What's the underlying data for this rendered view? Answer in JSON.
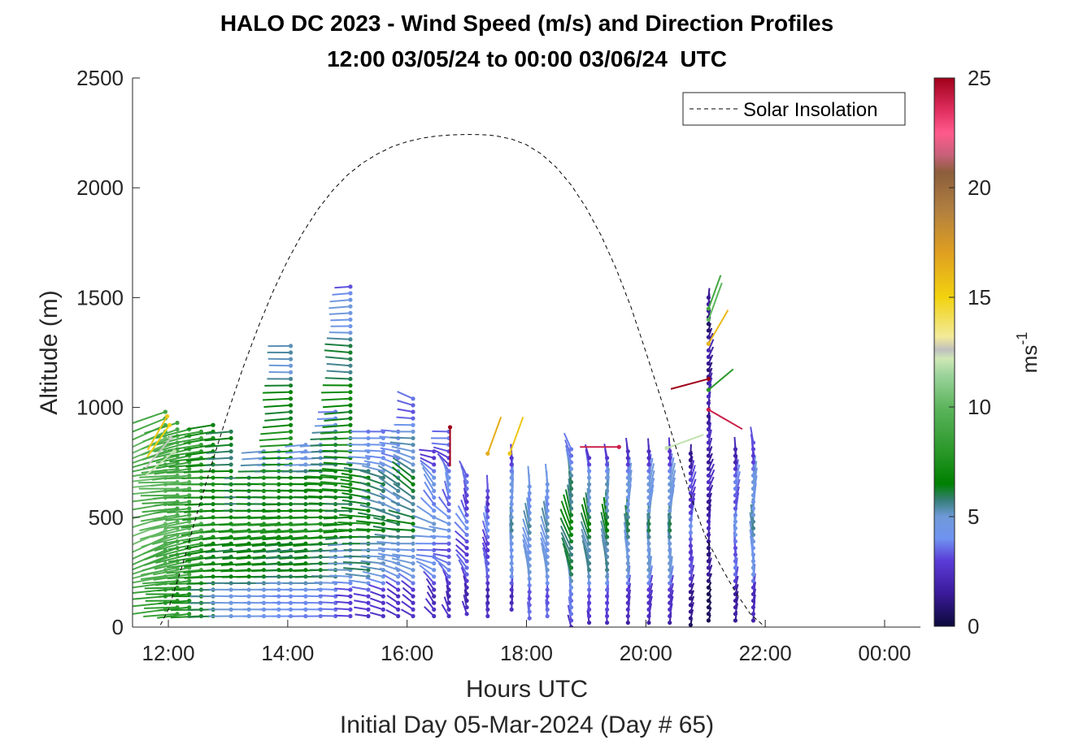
{
  "chart_data": {
    "type": "scatter",
    "title": "HALO DC 2023 - Wind Speed (m/s) and Direction Profiles",
    "subtitle": "12:00 03/05/24 to 00:00 03/06/24  UTC",
    "xlabel": "Hours UTC",
    "xlabel2": "Initial Day 05-Mar-2024 (Day # 65)",
    "ylabel": "Altitude (m)",
    "xlim": [
      11.4,
      24.6
    ],
    "ylim": [
      0,
      2500
    ],
    "x_ticks": [
      {
        "value": 12,
        "label": "12:00"
      },
      {
        "value": 14,
        "label": "14:00"
      },
      {
        "value": 16,
        "label": "16:00"
      },
      {
        "value": 18,
        "label": "18:00"
      },
      {
        "value": 20,
        "label": "20:00"
      },
      {
        "value": 22,
        "label": "22:00"
      },
      {
        "value": 24,
        "label": "00:00"
      }
    ],
    "y_ticks": [
      {
        "value": 0,
        "label": "0"
      },
      {
        "value": 500,
        "label": "500"
      },
      {
        "value": 1000,
        "label": "1000"
      },
      {
        "value": 1500,
        "label": "1500"
      },
      {
        "value": 2000,
        "label": "2000"
      },
      {
        "value": 2500,
        "label": "2500"
      }
    ],
    "colorbar": {
      "label_base": "ms",
      "label_exp": "-1",
      "range": [
        0,
        25
      ],
      "ticks": [
        {
          "value": 0,
          "label": "0"
        },
        {
          "value": 5,
          "label": "5"
        },
        {
          "value": 10,
          "label": "10"
        },
        {
          "value": 15,
          "label": "15"
        },
        {
          "value": 20,
          "label": "20"
        },
        {
          "value": 25,
          "label": "25"
        }
      ],
      "stops": [
        {
          "v": 0,
          "c": "#0c0a3a"
        },
        {
          "v": 1.5,
          "c": "#3a1a9a"
        },
        {
          "v": 3,
          "c": "#5a3cd8"
        },
        {
          "v": 4,
          "c": "#6f93f0"
        },
        {
          "v": 5,
          "c": "#6f9ad8"
        },
        {
          "v": 5.7,
          "c": "#3a7f7f"
        },
        {
          "v": 6.5,
          "c": "#008000"
        },
        {
          "v": 8,
          "c": "#2a982a"
        },
        {
          "v": 10,
          "c": "#5db55d"
        },
        {
          "v": 11.5,
          "c": "#9ed49e"
        },
        {
          "v": 12.2,
          "c": "#cfe8b5"
        },
        {
          "v": 12.6,
          "c": "#bfbfbf"
        },
        {
          "v": 13.2,
          "c": "#f2ea9a"
        },
        {
          "v": 15,
          "c": "#f2d20f"
        },
        {
          "v": 17,
          "c": "#e0a020"
        },
        {
          "v": 19,
          "c": "#b07f40"
        },
        {
          "v": 20.7,
          "c": "#8c5e3c"
        },
        {
          "v": 21.5,
          "c": "#c8607a"
        },
        {
          "v": 22.5,
          "c": "#ff5a8c"
        },
        {
          "v": 23.5,
          "c": "#e03060"
        },
        {
          "v": 25,
          "c": "#a0001a"
        }
      ]
    },
    "legend": {
      "position": "top-right",
      "entries": [
        {
          "name": "Solar Insolation",
          "style": "dashed",
          "color": "#000000"
        }
      ]
    },
    "solar_insolation": {
      "x": [
        11.4,
        11.85,
        12.0,
        12.25,
        12.5,
        12.75,
        13.0,
        13.25,
        13.5,
        13.75,
        14.0,
        14.25,
        14.5,
        14.75,
        15.0,
        15.25,
        15.5,
        15.75,
        16.0,
        16.25,
        16.5,
        16.75,
        17.0,
        17.25,
        17.38,
        17.5,
        17.75,
        18.0,
        18.25,
        18.5,
        18.75,
        19.0,
        19.25,
        19.5,
        19.75,
        20.0,
        20.25,
        20.5,
        20.75,
        21.0,
        21.25,
        21.5,
        21.75,
        22.0,
        22.25,
        22.5,
        22.7,
        22.78,
        23.0,
        24.0,
        24.6
      ],
      "y": [
        0,
        0,
        80,
        295,
        535,
        764,
        980,
        1180,
        1362,
        1526,
        1670,
        1794,
        1900,
        1987,
        2058,
        2112,
        2154,
        2187,
        2210,
        2226,
        2236,
        2241,
        2243,
        2242,
        2240,
        2236,
        2222,
        2196,
        2154,
        2093,
        2012,
        1909,
        1783,
        1633,
        1457,
        1253,
        1042,
        822,
        597,
        410,
        280,
        160,
        60,
        0,
        0,
        0,
        0,
        0,
        0,
        0,
        0
      ]
    },
    "wind_profiles": [
      {
        "time": 11.95,
        "alt_min": 80,
        "alt_max": 1000,
        "speed_base": 9.5,
        "speed_gain": 0.5,
        "dir_base": 75,
        "dir_gain": 10
      },
      {
        "time": 12.15,
        "alt_min": 60,
        "alt_max": 930,
        "speed_base": 9.0,
        "speed_gain": 0.5,
        "dir_base": 80,
        "dir_gain": 10
      },
      {
        "time": 12.35,
        "alt_min": 60,
        "alt_max": 900,
        "speed_base": 8.5,
        "speed_gain": 1.0,
        "dir_base": 80,
        "dir_gain": 5
      },
      {
        "time": 12.55,
        "alt_min": 50,
        "alt_max": 900,
        "speed_base": 8.0,
        "speed_gain": 1.0,
        "dir_base": 85,
        "dir_gain": 5
      },
      {
        "time": 12.75,
        "alt_min": 50,
        "alt_max": 920,
        "speed_base": 6.5,
        "speed_gain": 1.0,
        "dir_base": 85,
        "dir_gain": 5
      },
      {
        "time": 13.05,
        "alt_min": 50,
        "alt_max": 900,
        "speed_base": 5.5,
        "speed_gain": 1.5,
        "dir_base": 88,
        "dir_gain": 3
      },
      {
        "time": 13.35,
        "alt_min": 50,
        "alt_max": 700,
        "speed_base": 5.0,
        "speed_gain": 2.0,
        "dir_base": 88,
        "dir_gain": 3
      },
      {
        "time": 13.6,
        "alt_min": 50,
        "alt_max": 820,
        "speed_base": 5.0,
        "speed_gain": 2.5,
        "dir_base": 88,
        "dir_gain": 3
      },
      {
        "time": 13.85,
        "alt_min": 50,
        "alt_max": 820,
        "speed_base": 4.5,
        "speed_gain": 2.5,
        "dir_base": 88,
        "dir_gain": 3
      },
      {
        "time": 14.05,
        "alt_min": 50,
        "alt_max": 1290,
        "speed_base": 4.5,
        "speed_gain": 3.0,
        "dir_base": 88,
        "dir_gain": 3
      },
      {
        "time": 14.3,
        "alt_min": 50,
        "alt_max": 830,
        "speed_base": 4.2,
        "speed_gain": 3.0,
        "dir_base": 88,
        "dir_gain": 3
      },
      {
        "time": 14.55,
        "alt_min": 50,
        "alt_max": 830,
        "speed_base": 4.2,
        "speed_gain": 3.0,
        "dir_base": 88,
        "dir_gain": 3
      },
      {
        "time": 14.8,
        "alt_min": 50,
        "alt_max": 990,
        "speed_base": 4.0,
        "speed_gain": 3.0,
        "dir_base": 90,
        "dir_gain": 3
      },
      {
        "time": 15.05,
        "alt_min": 50,
        "alt_max": 1560,
        "speed_base": 3.5,
        "speed_gain": 3.5,
        "dir_base": 90,
        "dir_gain": 5
      },
      {
        "time": 15.35,
        "alt_min": 50,
        "alt_max": 910,
        "speed_base": 3.0,
        "speed_gain": 4.0,
        "dir_base": 95,
        "dir_gain": 5
      },
      {
        "time": 15.6,
        "alt_min": 50,
        "alt_max": 900,
        "speed_base": 3.0,
        "speed_gain": 3.0,
        "dir_base": 100,
        "dir_gain": 10
      },
      {
        "time": 15.85,
        "alt_min": 50,
        "alt_max": 910,
        "speed_base": 3.0,
        "speed_gain": 2.5,
        "dir_base": 110,
        "dir_gain": 15
      },
      {
        "time": 16.1,
        "alt_min": 50,
        "alt_max": 1050,
        "speed_base": 3.0,
        "speed_gain": 3.0,
        "dir_base": 110,
        "dir_gain": 20
      },
      {
        "time": 16.45,
        "alt_min": 50,
        "alt_max": 820,
        "speed_base": 3.0,
        "speed_gain": 1.5,
        "dir_base": 120,
        "dir_gain": 30
      },
      {
        "time": 16.7,
        "alt_min": 50,
        "alt_max": 910,
        "speed_base": 3.0,
        "speed_gain": 1.0,
        "dir_base": 130,
        "dir_gain": 40
      },
      {
        "time": 17.0,
        "alt_min": 60,
        "alt_max": 700,
        "speed_base": 3.0,
        "speed_gain": 0.5,
        "dir_base": 150,
        "dir_gain": 20
      },
      {
        "time": 17.35,
        "alt_min": 50,
        "alt_max": 630,
        "speed_base": 3.0,
        "speed_gain": 0.5,
        "dir_base": 170,
        "dir_gain": 10
      },
      {
        "time": 17.75,
        "alt_min": 80,
        "alt_max": 790,
        "speed_base": 3.0,
        "speed_gain": 2.0,
        "dir_base": 180,
        "dir_gain": 5
      },
      {
        "time": 18.05,
        "alt_min": 40,
        "alt_max": 650,
        "speed_base": 4.0,
        "speed_gain": 1.0,
        "dir_base": 170,
        "dir_gain": 10
      },
      {
        "time": 18.35,
        "alt_min": 50,
        "alt_max": 650,
        "speed_base": 4.0,
        "speed_gain": 1.0,
        "dir_base": 170,
        "dir_gain": 10
      },
      {
        "time": 18.75,
        "alt_min": 0,
        "alt_max": 820,
        "speed_base": 3.5,
        "speed_gain": 3.0,
        "dir_base": 165,
        "dir_gain": 10
      },
      {
        "time": 19.05,
        "alt_min": 20,
        "alt_max": 780,
        "speed_base": 3.0,
        "speed_gain": 3.0,
        "dir_base": 170,
        "dir_gain": 10
      },
      {
        "time": 19.35,
        "alt_min": 20,
        "alt_max": 790,
        "speed_base": 3.0,
        "speed_gain": 3.0,
        "dir_base": 175,
        "dir_gain": 10
      },
      {
        "time": 19.7,
        "alt_min": 20,
        "alt_max": 810,
        "speed_base": 2.5,
        "speed_gain": 3.0,
        "dir_base": 180,
        "dir_gain": 10
      },
      {
        "time": 20.05,
        "alt_min": 20,
        "alt_max": 800,
        "speed_base": 2.5,
        "speed_gain": 3.0,
        "dir_base": 185,
        "dir_gain": 10
      },
      {
        "time": 20.4,
        "alt_min": 20,
        "alt_max": 820,
        "speed_base": 2.5,
        "speed_gain": 3.0,
        "dir_base": 185,
        "dir_gain": 10
      },
      {
        "time": 20.75,
        "alt_min": 10,
        "alt_max": 800,
        "speed_base": 1.5,
        "speed_gain": 2.0,
        "dir_base": 190,
        "dir_gain": 10
      },
      {
        "time": 21.05,
        "alt_min": 30,
        "alt_max": 1500,
        "speed_base": 1.0,
        "speed_gain": 1.0,
        "dir_base": 195,
        "dir_gain": 10
      },
      {
        "time": 21.5,
        "alt_min": 30,
        "alt_max": 820,
        "speed_base": 2.0,
        "speed_gain": 2.0,
        "dir_base": 185,
        "dir_gain": 10
      },
      {
        "time": 21.8,
        "alt_min": 30,
        "alt_max": 860,
        "speed_base": 2.5,
        "speed_gain": 2.5,
        "dir_base": 180,
        "dir_gain": 10
      }
    ],
    "notable_barbs": [
      {
        "time": 11.98,
        "alt": 960,
        "speed": 15.5,
        "dir": 30
      },
      {
        "time": 12.02,
        "alt": 920,
        "speed": 15.0,
        "dir": 35
      },
      {
        "time": 12.04,
        "alt": 860,
        "speed": 12.5,
        "dir": 40
      },
      {
        "time": 12.1,
        "alt": 800,
        "speed": 12.0,
        "dir": 50
      },
      {
        "time": 16.72,
        "alt": 910,
        "speed": 25.0,
        "dir": 0
      },
      {
        "time": 17.35,
        "alt": 790,
        "speed": 16.5,
        "dir": 200
      },
      {
        "time": 17.72,
        "alt": 790,
        "speed": 15.5,
        "dir": 200
      },
      {
        "time": 19.55,
        "alt": 820,
        "speed": 24.0,
        "dir": 90
      },
      {
        "time": 20.35,
        "alt": 815,
        "speed": 12.0,
        "dir": 250
      },
      {
        "time": 21.05,
        "alt": 1290,
        "speed": 16.0,
        "dir": 210
      },
      {
        "time": 21.05,
        "alt": 1130,
        "speed": 25.0,
        "dir": 75
      },
      {
        "time": 21.05,
        "alt": 990,
        "speed": 24.0,
        "dir": 300
      },
      {
        "time": 21.05,
        "alt": 1450,
        "speed": 9.0,
        "dir": 200
      },
      {
        "time": 21.05,
        "alt": 1400,
        "speed": 10.0,
        "dir": 200
      },
      {
        "time": 21.05,
        "alt": 1080,
        "speed": 8.0,
        "dir": 230
      }
    ]
  }
}
